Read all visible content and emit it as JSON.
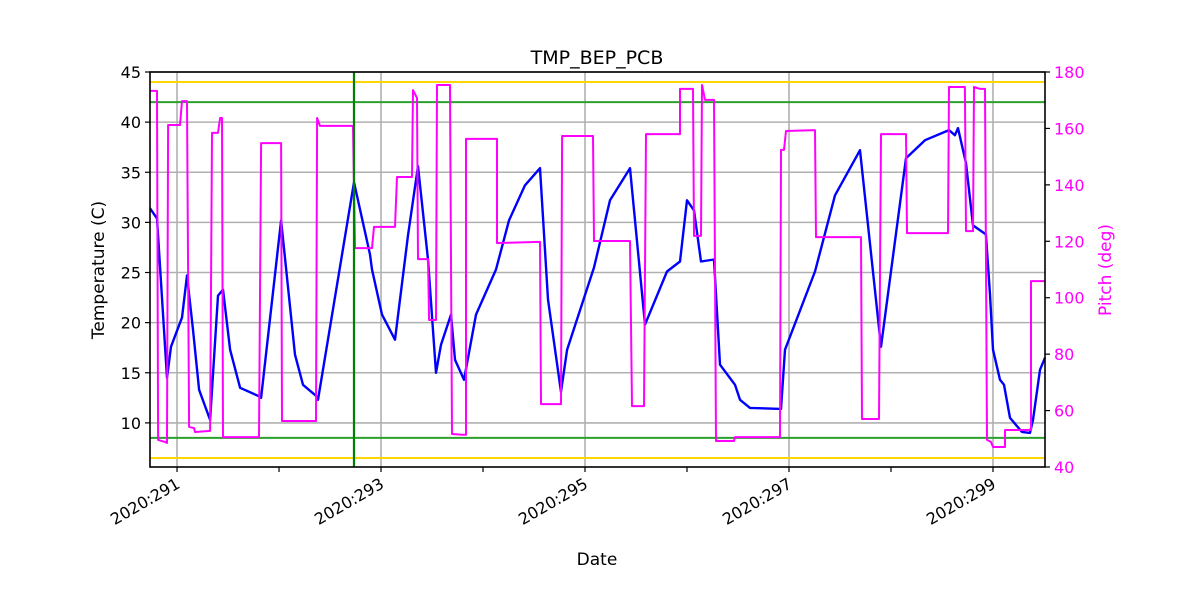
{
  "chart_data": {
    "type": "line",
    "title": "TMP_BEP_PCB",
    "xlabel": "Date",
    "ylabel": "Temperature (C)",
    "y2label": "Pitch (deg)",
    "xlim": [
      290.735,
      299.51
    ],
    "ylim": [
      5.6,
      45
    ],
    "y2lim": [
      40,
      180
    ],
    "x_ticks": [
      291,
      292,
      293,
      294,
      295,
      296,
      297,
      298,
      299
    ],
    "x_tick_labels": {
      "291": "2020:291",
      "293": "2020:293",
      "295": "2020:295",
      "297": "2020:297",
      "299": "2020:299"
    },
    "y_ticks": [
      10,
      15,
      20,
      25,
      30,
      35,
      40,
      45
    ],
    "y2_ticks": [
      40,
      60,
      80,
      100,
      120,
      140,
      160,
      180
    ],
    "grid": true,
    "colors": {
      "temperature": "#0000ff",
      "pitch": "#ff00ff",
      "yellow_limit": "#ffd700",
      "green_limit": "#2ca02c",
      "green_marker": "#008000",
      "y2axis": "#ff00ff"
    },
    "hlines": [
      {
        "y": 44.0,
        "color": "#ffd700"
      },
      {
        "y": 6.5,
        "color": "#ffd700"
      },
      {
        "y": 42.0,
        "color": "#2ca02c"
      },
      {
        "y": 8.5,
        "color": "#2ca02c"
      }
    ],
    "vlines": [
      {
        "x": 292.735,
        "color": "#008000"
      }
    ],
    "series": [
      {
        "axis": "left",
        "color": "#0000ff",
        "x": [
          290.735,
          290.804,
          290.902,
          290.941,
          291.049,
          291.098,
          291.157,
          291.216,
          291.324,
          291.402,
          291.451,
          291.52,
          291.618,
          291.794,
          291.824,
          292.02,
          292.157,
          292.235,
          292.363,
          292.382,
          292.735,
          292.892,
          292.912,
          293.01,
          293.137,
          293.265,
          293.363,
          293.461,
          293.539,
          293.588,
          293.686,
          293.725,
          293.814,
          293.931,
          294.127,
          294.255,
          294.412,
          294.559,
          294.637,
          294.765,
          294.824,
          295.088,
          295.245,
          295.441,
          295.588,
          295.804,
          295.931,
          296.0,
          296.069,
          296.137,
          296.265,
          296.324,
          296.471,
          296.52,
          296.618,
          296.922,
          296.961,
          297.255,
          297.451,
          297.696,
          297.902,
          298.147,
          298.333,
          298.569,
          298.627,
          298.657,
          298.735,
          298.804,
          298.931,
          298.971,
          299.0,
          299.069,
          299.108,
          299.167,
          299.284,
          299.363,
          299.392,
          299.461,
          299.51
        ],
        "y": [
          31.4,
          30.4,
          14.5,
          17.6,
          20.5,
          24.7,
          19.3,
          13.3,
          10.3,
          22.7,
          23.3,
          17.3,
          13.5,
          12.7,
          12.5,
          30.2,
          16.8,
          13.8,
          12.7,
          12.3,
          34.0,
          26.8,
          25.3,
          20.8,
          18.3,
          28.7,
          35.6,
          26.3,
          15.0,
          17.8,
          20.8,
          16.3,
          14.3,
          20.8,
          25.3,
          30.2,
          33.7,
          35.4,
          22.3,
          13.1,
          17.3,
          25.5,
          32.2,
          35.4,
          19.8,
          25.1,
          26.1,
          32.2,
          31.2,
          26.1,
          26.3,
          15.8,
          13.8,
          12.3,
          11.5,
          11.4,
          17.3,
          25.1,
          32.7,
          37.2,
          17.6,
          36.4,
          38.2,
          39.2,
          38.7,
          39.4,
          35.9,
          29.7,
          28.8,
          22.8,
          17.3,
          14.3,
          13.8,
          10.5,
          9.1,
          9.0,
          10.3,
          15.3,
          16.5
        ]
      },
      {
        "axis": "right",
        "color": "#ff00ff",
        "x": [
          290.735,
          290.804,
          290.814,
          290.882,
          290.902,
          290.912,
          291.029,
          291.049,
          291.098,
          291.118,
          291.167,
          291.176,
          291.324,
          291.343,
          291.402,
          291.422,
          291.441,
          291.451,
          291.804,
          291.824,
          292.02,
          292.029,
          292.363,
          292.373,
          292.402,
          292.725,
          292.745,
          292.912,
          292.931,
          293.137,
          293.157,
          293.304,
          293.314,
          293.353,
          293.363,
          293.461,
          293.471,
          293.539,
          293.549,
          293.676,
          293.696,
          293.794,
          293.833,
          293.833,
          294.137,
          294.137,
          294.559,
          294.569,
          294.765,
          294.775,
          295.078,
          295.088,
          295.441,
          295.461,
          295.578,
          295.598,
          295.931,
          295.931,
          296.059,
          296.069,
          296.137,
          296.147,
          296.176,
          296.265,
          296.284,
          296.461,
          296.471,
          296.912,
          296.922,
          296.951,
          296.971,
          297.255,
          297.265,
          297.706,
          297.716,
          297.882,
          297.902,
          298.147,
          298.157,
          298.559,
          298.569,
          298.725,
          298.735,
          298.804,
          298.814,
          298.873,
          298.922,
          298.941,
          298.98,
          299.0,
          299.118,
          299.118,
          299.373,
          299.373,
          299.51
        ],
        "y": [
          173.3,
          173.3,
          49.6,
          48.9,
          48.5,
          161.2,
          161.2,
          169.7,
          169.7,
          54.2,
          53.8,
          52.4,
          52.8,
          158.4,
          158.4,
          163.7,
          163.7,
          50.6,
          50.6,
          154.8,
          154.8,
          56.3,
          56.3,
          163.7,
          160.9,
          160.9,
          117.6,
          117.6,
          125.1,
          125.1,
          142.8,
          142.8,
          173.6,
          170.8,
          113.7,
          113.7,
          92.1,
          92.1,
          175.4,
          175.4,
          51.7,
          51.4,
          51.4,
          156.3,
          156.3,
          119.4,
          119.8,
          62.3,
          62.3,
          157.3,
          157.3,
          120.1,
          120.1,
          61.6,
          61.6,
          158.0,
          158.0,
          174.0,
          174.0,
          121.9,
          121.9,
          175.4,
          170.1,
          170.1,
          49.2,
          49.2,
          50.6,
          50.6,
          152.4,
          152.4,
          159.1,
          159.4,
          121.5,
          121.5,
          57.0,
          57.0,
          158.0,
          158.0,
          122.9,
          122.9,
          174.7,
          174.7,
          123.6,
          123.6,
          174.7,
          174.0,
          174.0,
          49.6,
          48.9,
          47.1,
          47.1,
          53.1,
          53.1,
          105.9,
          105.9
        ]
      }
    ]
  }
}
